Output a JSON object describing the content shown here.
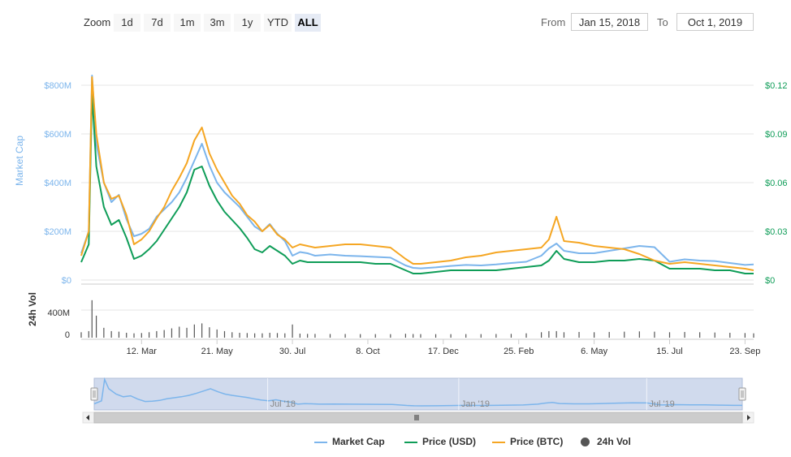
{
  "toolbar": {
    "zoom_label": "Zoom",
    "zoom_buttons": [
      "1d",
      "7d",
      "1m",
      "3m",
      "1y",
      "YTD",
      "ALL"
    ],
    "active_zoom": "ALL",
    "from_label": "From",
    "from_value": "Jan 15, 2018",
    "to_label": "To",
    "to_value": "Oct 1, 2019"
  },
  "colors": {
    "market_cap": "#7cb5ec",
    "price_usd": "#0f9d58",
    "price_btc": "#f5a623",
    "volume": "#555555",
    "navigator_fill": "#c8d4ea",
    "left_axis": "#7cb5ec",
    "right_axis": "#0f9d58"
  },
  "chart_data": {
    "type": "line",
    "left_axis": {
      "label": "Market Cap",
      "ticks": [
        "$0",
        "$200M",
        "$400M",
        "$600M",
        "$800M"
      ],
      "range": [
        0,
        800000000
      ]
    },
    "right_axis": {
      "ticks": [
        "$0",
        "$0.03",
        "$0.06",
        "$0.09",
        "$0.12"
      ],
      "range": [
        0,
        0.12
      ]
    },
    "volume_axis": {
      "label": "24h Vol",
      "ticks": [
        "0",
        "400M"
      ]
    },
    "x_ticks": [
      "12. Mar",
      "21. May",
      "30. Jul",
      "8. Oct",
      "17. Dec",
      "25. Feb",
      "6. May",
      "15. Jul",
      "23. Sep"
    ],
    "navigator_ticks": [
      "Jul '18",
      "Jan '19",
      "Jul '19"
    ],
    "x": [
      "2018-01-15",
      "2018-01-22",
      "2018-01-25",
      "2018-01-29",
      "2018-02-05",
      "2018-02-12",
      "2018-02-19",
      "2018-02-26",
      "2018-03-05",
      "2018-03-12",
      "2018-03-19",
      "2018-03-26",
      "2018-04-02",
      "2018-04-09",
      "2018-04-16",
      "2018-04-23",
      "2018-04-30",
      "2018-05-07",
      "2018-05-14",
      "2018-05-21",
      "2018-05-28",
      "2018-06-04",
      "2018-06-11",
      "2018-06-18",
      "2018-06-25",
      "2018-07-02",
      "2018-07-09",
      "2018-07-16",
      "2018-07-23",
      "2018-07-30",
      "2018-08-06",
      "2018-08-13",
      "2018-08-20",
      "2018-09-03",
      "2018-09-17",
      "2018-10-01",
      "2018-10-15",
      "2018-10-29",
      "2018-11-12",
      "2018-11-19",
      "2018-11-26",
      "2018-12-10",
      "2018-12-24",
      "2019-01-07",
      "2019-01-21",
      "2019-02-04",
      "2019-02-18",
      "2019-03-04",
      "2019-03-18",
      "2019-03-25",
      "2019-04-01",
      "2019-04-08",
      "2019-04-22",
      "2019-05-06",
      "2019-05-20",
      "2019-06-03",
      "2019-06-17",
      "2019-07-01",
      "2019-07-15",
      "2019-07-29",
      "2019-08-12",
      "2019-08-26",
      "2019-09-09",
      "2019-09-23",
      "2019-10-01"
    ],
    "series": [
      {
        "name": "Market Cap",
        "axis": "left",
        "values": [
          110000000,
          200000000,
          840000000,
          560000000,
          400000000,
          320000000,
          350000000,
          250000000,
          180000000,
          190000000,
          210000000,
          260000000,
          290000000,
          320000000,
          360000000,
          420000000,
          490000000,
          560000000,
          470000000,
          400000000,
          360000000,
          330000000,
          300000000,
          260000000,
          220000000,
          200000000,
          230000000,
          190000000,
          160000000,
          100000000,
          115000000,
          110000000,
          100000000,
          105000000,
          100000000,
          98000000,
          95000000,
          92000000,
          60000000,
          50000000,
          48000000,
          52000000,
          58000000,
          62000000,
          60000000,
          64000000,
          70000000,
          75000000,
          100000000,
          130000000,
          150000000,
          120000000,
          110000000,
          110000000,
          120000000,
          130000000,
          140000000,
          135000000,
          75000000,
          85000000,
          80000000,
          78000000,
          70000000,
          62000000,
          64000000
        ]
      },
      {
        "name": "Price (USD)",
        "axis": "right",
        "values": [
          0.011,
          0.022,
          0.115,
          0.07,
          0.045,
          0.034,
          0.037,
          0.026,
          0.013,
          0.015,
          0.019,
          0.024,
          0.031,
          0.038,
          0.045,
          0.054,
          0.068,
          0.07,
          0.058,
          0.049,
          0.042,
          0.037,
          0.032,
          0.026,
          0.019,
          0.017,
          0.021,
          0.018,
          0.015,
          0.01,
          0.012,
          0.011,
          0.011,
          0.011,
          0.011,
          0.011,
          0.01,
          0.01,
          0.006,
          0.004,
          0.004,
          0.005,
          0.006,
          0.006,
          0.006,
          0.006,
          0.007,
          0.008,
          0.009,
          0.012,
          0.018,
          0.013,
          0.011,
          0.011,
          0.012,
          0.012,
          0.013,
          0.012,
          0.007,
          0.007,
          0.007,
          0.006,
          0.006,
          0.004,
          0.004
        ]
      },
      {
        "name": "Price (BTC)",
        "axis": "right",
        "values": [
          0.015,
          0.03,
          0.125,
          0.09,
          0.06,
          0.05,
          0.052,
          0.04,
          0.022,
          0.025,
          0.03,
          0.038,
          0.045,
          0.055,
          0.063,
          0.072,
          0.086,
          0.094,
          0.078,
          0.068,
          0.06,
          0.052,
          0.047,
          0.04,
          0.036,
          0.03,
          0.034,
          0.028,
          0.025,
          0.02,
          0.022,
          0.021,
          0.02,
          0.021,
          0.022,
          0.022,
          0.021,
          0.02,
          0.013,
          0.01,
          0.01,
          0.011,
          0.012,
          0.014,
          0.015,
          0.017,
          0.018,
          0.019,
          0.02,
          0.025,
          0.039,
          0.024,
          0.023,
          0.021,
          0.02,
          0.019,
          0.016,
          0.012,
          0.01,
          0.011,
          0.01,
          0.009,
          0.008,
          0.007,
          0.006
        ]
      },
      {
        "name": "24h Vol",
        "axis": "volume",
        "values": [
          40000000,
          60000000,
          620000000,
          340000000,
          120000000,
          60000000,
          50000000,
          30000000,
          20000000,
          25000000,
          40000000,
          60000000,
          80000000,
          110000000,
          140000000,
          120000000,
          180000000,
          200000000,
          130000000,
          90000000,
          60000000,
          40000000,
          30000000,
          25000000,
          20000000,
          20000000,
          30000000,
          25000000,
          20000000,
          180000000,
          15000000,
          10000000,
          10000000,
          8000000,
          8000000,
          6000000,
          6000000,
          5000000,
          12000000,
          8000000,
          6000000,
          5000000,
          5000000,
          6000000,
          6000000,
          8000000,
          10000000,
          20000000,
          40000000,
          60000000,
          60000000,
          40000000,
          45000000,
          40000000,
          45000000,
          50000000,
          55000000,
          50000000,
          40000000,
          45000000,
          40000000,
          35000000,
          30000000,
          25000000,
          20000000
        ]
      }
    ],
    "legend": [
      "Market Cap",
      "Price (USD)",
      "Price (BTC)",
      "24h Vol"
    ],
    "legend_placement": "bottom-center"
  }
}
